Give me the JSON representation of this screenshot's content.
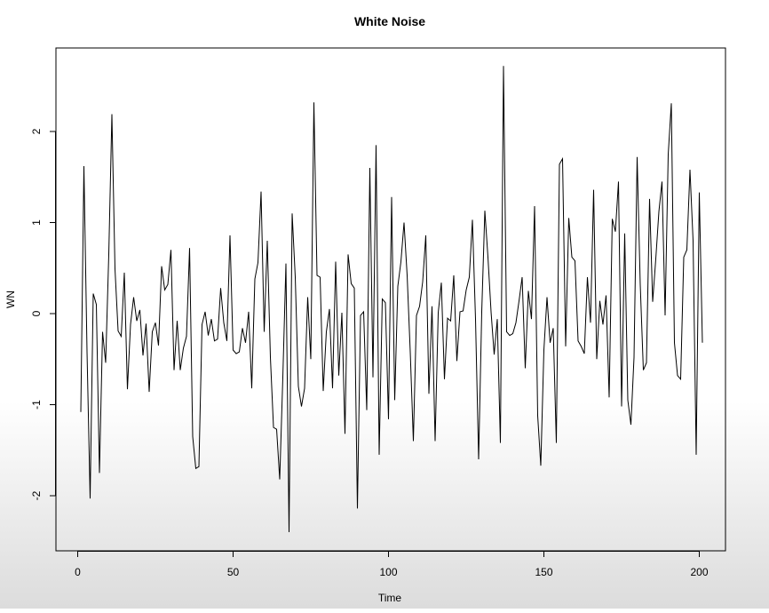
{
  "chart_data": {
    "type": "line",
    "title": "White Noise",
    "xlabel": "Time",
    "ylabel": "WN",
    "xlim": [
      1,
      200
    ],
    "ylim": [
      -2.6,
      2.9
    ],
    "x_ticks": [
      0,
      50,
      100,
      150,
      200
    ],
    "x_tick_labels": [
      "0",
      "50",
      "100",
      "150",
      "200"
    ],
    "y_ticks": [
      -2,
      -1,
      0,
      1,
      2
    ],
    "y_tick_labels": [
      "-2",
      "-1",
      "0",
      "1",
      "2"
    ],
    "grid": false,
    "legend": "none",
    "line_color": "#000000",
    "series": [
      {
        "x_start": 1,
        "values": [
          -1.08,
          1.62,
          -0.42,
          -2.03,
          0.22,
          0.1,
          -1.75,
          -0.2,
          -0.54,
          0.65,
          2.19,
          0.49,
          -0.19,
          -0.25,
          0.45,
          -0.83,
          -0.12,
          0.18,
          -0.08,
          0.04,
          -0.46,
          -0.11,
          -0.86,
          -0.2,
          -0.1,
          -0.35,
          0.52,
          0.26,
          0.32,
          0.7,
          -0.62,
          -0.08,
          -0.62,
          -0.38,
          -0.25,
          0.72,
          -1.35,
          -1.7,
          -1.68,
          -0.12,
          0.02,
          -0.24,
          -0.06,
          -0.3,
          -0.28,
          0.28,
          -0.1,
          -0.3,
          0.86,
          -0.4,
          -0.44,
          -0.42,
          -0.16,
          -0.32,
          0.02,
          -0.82,
          0.38,
          0.56,
          1.34,
          -0.2,
          0.8,
          -0.48,
          -1.25,
          -1.27,
          -1.82,
          -0.7,
          0.55,
          -2.4,
          1.1,
          0.4,
          -0.8,
          -1.02,
          -0.82,
          0.18,
          -0.5,
          2.32,
          0.42,
          0.4,
          -0.85,
          -0.2,
          0.05,
          -0.82,
          0.57,
          -0.68,
          0.01,
          -1.32,
          0.65,
          0.33,
          0.28,
          -2.14,
          -0.02,
          0.02,
          -1.06,
          1.6,
          -0.7,
          1.85,
          -1.55,
          0.16,
          0.12,
          -1.16,
          1.28,
          -0.95,
          0.3,
          0.57,
          1.0,
          0.42,
          -0.42,
          -1.4,
          -0.02,
          0.08,
          0.35,
          0.86,
          -0.88,
          0.08,
          -1.4,
          0.01,
          0.34,
          -0.72,
          -0.05,
          -0.08,
          0.42,
          -0.52,
          0.02,
          0.03,
          0.26,
          0.4,
          1.03,
          -0.06,
          -1.6,
          0.02,
          1.13,
          0.62,
          0.02,
          -0.45,
          -0.06,
          -1.42,
          2.72,
          -0.2,
          -0.24,
          -0.22,
          -0.1,
          0.14,
          0.4,
          -0.6,
          0.25,
          -0.06,
          1.18,
          -1.12,
          -1.67,
          -0.4,
          0.18,
          -0.32,
          -0.16,
          -1.42,
          1.64,
          1.7,
          -0.36,
          1.05,
          0.62,
          0.58,
          -0.3,
          -0.36,
          -0.44,
          0.4,
          -0.1,
          1.36,
          -0.5,
          0.14,
          -0.12,
          0.2,
          -0.92,
          1.04,
          0.9,
          1.45,
          -1.02,
          0.88,
          -0.95,
          -1.22,
          -0.48,
          1.72,
          0.32,
          -0.62,
          -0.54,
          1.26,
          0.13,
          0.6,
          1.12,
          1.45,
          -0.02,
          1.75,
          2.31,
          -0.32,
          -0.68,
          -0.72,
          0.62,
          0.7,
          1.58,
          0.8,
          -1.55,
          1.33,
          -0.32
        ]
      }
    ]
  }
}
